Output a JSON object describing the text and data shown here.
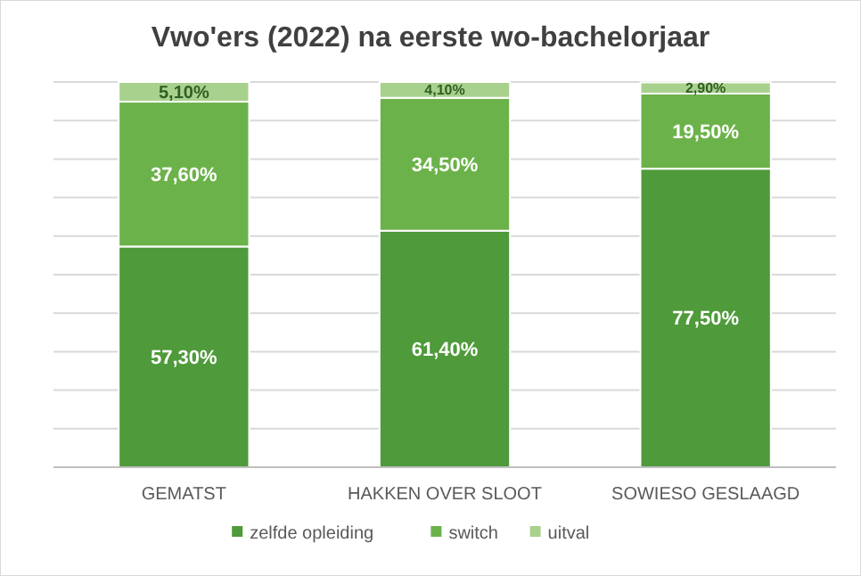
{
  "chart_data": {
    "type": "bar",
    "title": "Vwo'ers (2022) na eerste wo-bachelorjaar",
    "categories": [
      "GEMATST",
      "HAKKEN OVER SLOOT",
      "SOWIESO GESLAAGD"
    ],
    "stacked": true,
    "ylim": [
      0,
      100
    ],
    "yticks": [
      0,
      10,
      20,
      30,
      40,
      50,
      60,
      70,
      80,
      90,
      100
    ],
    "tick_labels": "x",
    "grid": "y",
    "legend": "bottom",
    "series": [
      {
        "name": "zelfde opleiding",
        "color": "#4f9a3a",
        "values": [
          57.3,
          61.4,
          77.5
        ],
        "value_labels": [
          "57,30%",
          "61,40%",
          "77,50%"
        ]
      },
      {
        "name": "switch",
        "color": "#6cb24a",
        "values": [
          37.6,
          34.5,
          19.5
        ],
        "value_labels": [
          "37,60%",
          "34,50%",
          "19,50%"
        ]
      },
      {
        "name": "uitval",
        "color": "#a9d18e",
        "values": [
          5.1,
          4.1,
          2.9
        ],
        "value_labels": [
          "5,10%",
          "4,10%",
          "2,90%"
        ]
      }
    ]
  }
}
